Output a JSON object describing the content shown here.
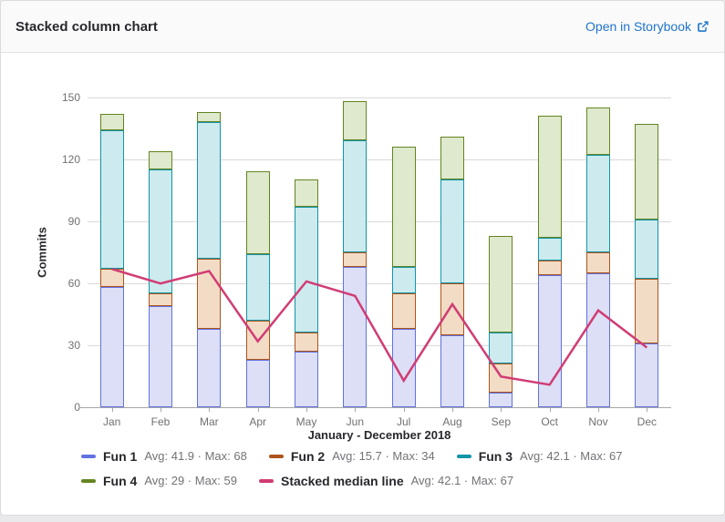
{
  "header": {
    "title": "Stacked column chart",
    "storybook_link_label": "Open in Storybook"
  },
  "link_color": "#1f75cb",
  "chart_data": {
    "type": "bar",
    "stacked": true,
    "title": "January - December 2018",
    "xlabel": "January - December 2018",
    "ylabel": "Commits",
    "ylim": [
      0,
      150
    ],
    "yticks": [
      0,
      30,
      60,
      90,
      120,
      150
    ],
    "grid": true,
    "legend_position": "bottom",
    "categories": [
      "Jan",
      "Feb",
      "Mar",
      "Apr",
      "May",
      "Jun",
      "Jul",
      "Aug",
      "Sep",
      "Oct",
      "Nov",
      "Dec"
    ],
    "series": [
      {
        "name": "Fun 1",
        "type": "bar",
        "values": [
          58,
          49,
          38,
          23,
          27,
          68,
          38,
          35,
          7,
          64,
          65,
          31
        ],
        "color": "#6172e0",
        "fill": "#dcdff6",
        "legend_stats": "Avg: 41.9 · Max: 68"
      },
      {
        "name": "Fun 2",
        "type": "bar",
        "values": [
          9,
          6,
          34,
          19,
          9,
          7,
          17,
          25,
          14,
          7,
          10,
          31
        ],
        "color": "#ad541c",
        "fill": "#f2dcc6",
        "legend_stats": "Avg: 15.7 · Max: 34"
      },
      {
        "name": "Fun 3",
        "type": "bar",
        "values": [
          67,
          60,
          66,
          32,
          61,
          54,
          13,
          50,
          15,
          11,
          47,
          29
        ],
        "color": "#1195a8",
        "fill": "#cdeaee",
        "legend_stats": "Avg: 42.1 · Max: 67"
      },
      {
        "name": "Fun 4",
        "type": "bar",
        "values": [
          8,
          9,
          5,
          40,
          13,
          19,
          58,
          21,
          47,
          59,
          23,
          46
        ],
        "color": "#648420",
        "fill": "#dee9cd",
        "legend_stats": "Avg: 29 · Max: 59"
      },
      {
        "name": "Stacked median line",
        "type": "line",
        "values": [
          67,
          60,
          66,
          32,
          61,
          54,
          13,
          50,
          15,
          11,
          47,
          29
        ],
        "color": "#d13c74",
        "legend_stats": "Avg: 42.1 · Max: 67"
      }
    ]
  }
}
